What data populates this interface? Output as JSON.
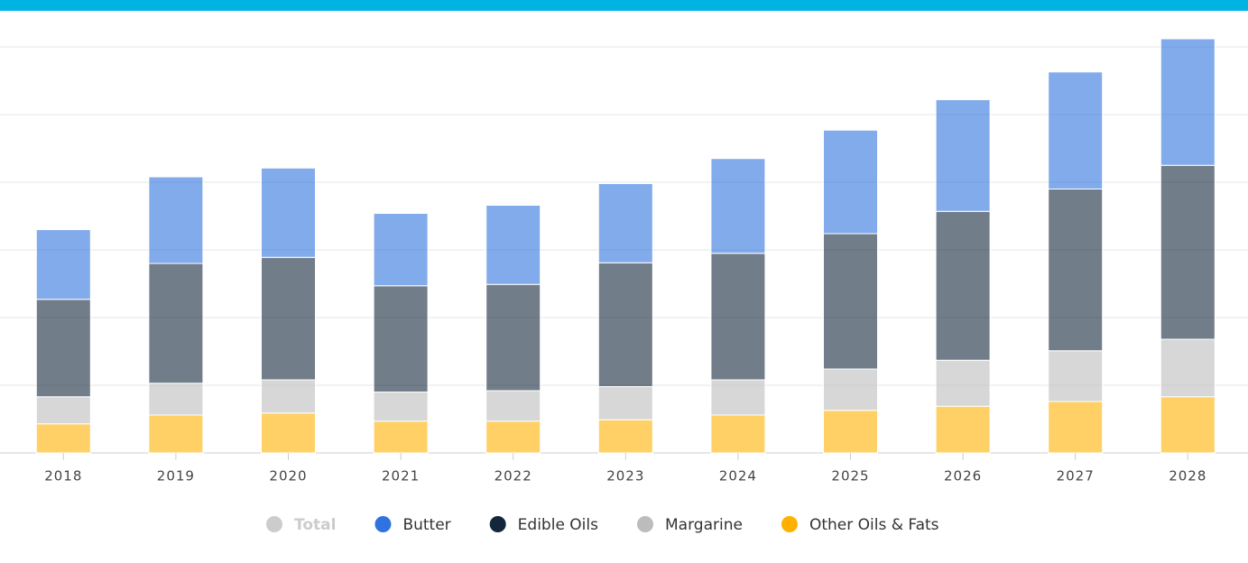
{
  "chart_data": {
    "type": "stacked-bar",
    "categories": [
      "2018",
      "2019",
      "2020",
      "2021",
      "2022",
      "2023",
      "2024",
      "2025",
      "2026",
      "2027",
      "2028"
    ],
    "series": [
      {
        "name": "Total",
        "color": "#cccccc",
        "visible": false
      },
      {
        "name": "Butter",
        "color": "#2f73e0",
        "values": [
          1.03,
          1.28,
          1.32,
          1.07,
          1.17,
          1.17,
          1.4,
          1.53,
          1.65,
          1.73,
          1.87
        ]
      },
      {
        "name": "Edible Oils",
        "color": "#13263b",
        "values": [
          1.44,
          1.77,
          1.81,
          1.57,
          1.57,
          1.83,
          1.87,
          2.0,
          2.2,
          2.39,
          2.57
        ]
      },
      {
        "name": "Margarine",
        "color": "#bcbcbc",
        "values": [
          0.4,
          0.47,
          0.49,
          0.43,
          0.45,
          0.49,
          0.52,
          0.61,
          0.68,
          0.75,
          0.85
        ]
      },
      {
        "name": "Other Oils & Fats",
        "color": "#ffb000",
        "values": [
          0.43,
          0.56,
          0.59,
          0.47,
          0.47,
          0.49,
          0.56,
          0.63,
          0.69,
          0.76,
          0.83
        ]
      }
    ],
    "stack_order": [
      "Other Oils & Fats",
      "Margarine",
      "Edible Oils",
      "Butter"
    ],
    "bar_opacity": 0.6,
    "ylim": [
      0,
      6.2
    ],
    "yticks": [
      0,
      1,
      2,
      3,
      4,
      5,
      6
    ],
    "grid": true,
    "legend": "bottom"
  }
}
